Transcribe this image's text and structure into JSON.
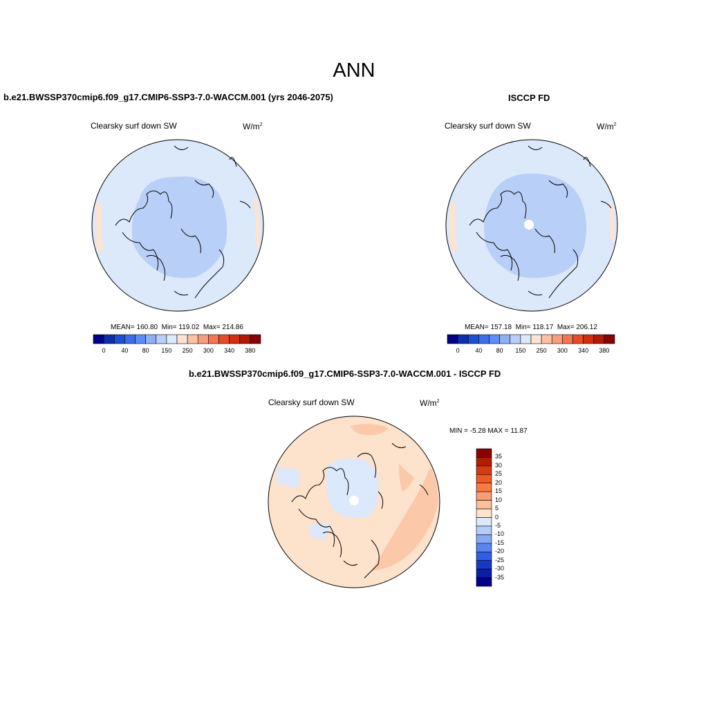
{
  "title": "ANN",
  "variable": "Clearsky surf down SW",
  "units_base": "W/m",
  "units_exp": "2",
  "panels": {
    "model": {
      "title": "b.e21.BWSSP370cmip6.f09_g17.CMIP6-SSP3-7.0-WACCM.001 (yrs 2046-2075)",
      "stats": {
        "mean": "160.80",
        "min": "119.02",
        "max": "214.86"
      }
    },
    "obs": {
      "title": "ISCCP FD",
      "stats": {
        "mean": "157.18",
        "min": "118.17",
        "max": "206.12"
      }
    },
    "diff": {
      "title": "b.e21.BWSSP370cmip6.f09_g17.CMIP6-SSP3-7.0-WACCM.001 - ISCCP FD",
      "min_label": "MIN =",
      "min": "-5.28",
      "max_label": "MAX =",
      "max": "11.87"
    }
  },
  "stats_labels": {
    "mean": "MEAN=",
    "min": "Min=",
    "max": "Max="
  },
  "colorbar_field": {
    "labels": [
      "0",
      "40",
      "80",
      "150",
      "250",
      "300",
      "340",
      "380"
    ],
    "colors": [
      "#00008b",
      "#0a2fb0",
      "#1a4fd6",
      "#3a6cf0",
      "#5b8df8",
      "#8fb0f5",
      "#b8cff7",
      "#dce9fb",
      "#fde4d2",
      "#fcc2a6",
      "#f99e7b",
      "#f47550",
      "#ec4a26",
      "#d72b10",
      "#b11806",
      "#8b0000"
    ]
  },
  "colorbar_diff": {
    "labels": [
      "35",
      "30",
      "25",
      "20",
      "15",
      "10",
      "5",
      "0",
      "-5",
      "-10",
      "-15",
      "-20",
      "-25",
      "-30",
      "-35"
    ],
    "colors": [
      "#8b0000",
      "#b01c04",
      "#d73a10",
      "#ee5a22",
      "#f77c44",
      "#f99e72",
      "#fcbf9b",
      "#fde2cc",
      "#dce8fb",
      "#b4cdf8",
      "#86aaf4",
      "#5985ef",
      "#2e5fe6",
      "#1539c2",
      "#0a1fa0",
      "#00008b"
    ]
  },
  "field_colors": {
    "light_blue": "#dce9fb",
    "medium_blue": "#b8cff7",
    "peach": "#fde4d2",
    "diff_peach": "#fde2cc",
    "diff_salmon": "#fcc8aa",
    "diff_blue": "#dce8fb"
  }
}
